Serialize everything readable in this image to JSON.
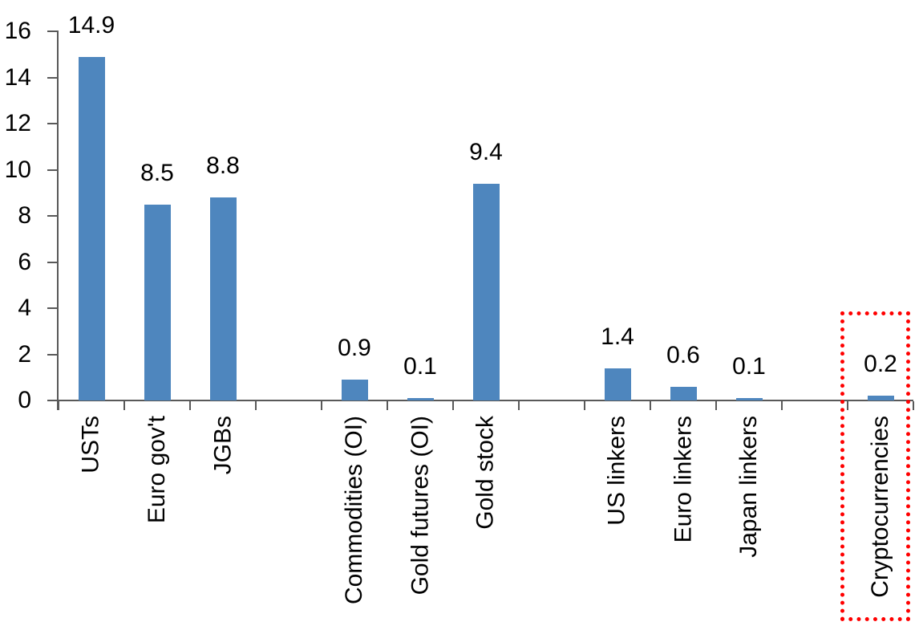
{
  "chart_data": {
    "type": "bar",
    "title": "",
    "xlabel": "",
    "ylabel": "",
    "categories": [
      "USTs",
      "Euro gov't",
      "JGBs",
      "Commodities (OI)",
      "Gold futures (OI)",
      "Gold stock",
      "US linkers",
      "Euro linkers",
      "Japan linkers",
      "Cryptocurrencies"
    ],
    "values": [
      14.9,
      8.5,
      8.8,
      0.9,
      0.1,
      9.4,
      1.4,
      0.6,
      0.1,
      0.2
    ],
    "data_labels": [
      "14.9",
      "8.5",
      "8.8",
      "0.9",
      "0.1",
      "9.4",
      "1.4",
      "0.6",
      "0.1",
      "0.2"
    ],
    "slot_indices": [
      0,
      1,
      2,
      4,
      5,
      6,
      8,
      9,
      10,
      12
    ],
    "total_slots": 13,
    "y_ticks": [
      0,
      2,
      4,
      6,
      8,
      10,
      12,
      14,
      16
    ],
    "ylim": [
      0,
      16
    ],
    "grid": false,
    "legend_position": "none",
    "x_label_rotation_deg": -90,
    "bar_color": "#4E86BE",
    "axis_color": "#595959",
    "text_color": "#000000",
    "highlight": {
      "category": "Cryptocurrencies",
      "style": "dotted-box",
      "color": "#FF0000"
    }
  }
}
